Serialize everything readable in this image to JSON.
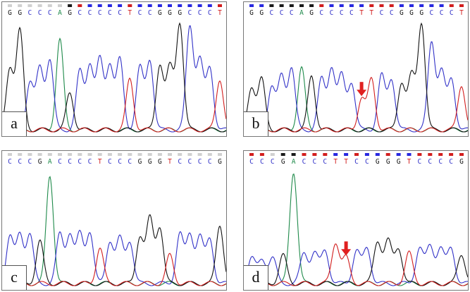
{
  "colors": {
    "A": "#1e8a4a",
    "C": "#3232c8",
    "G": "#111111",
    "T": "#d21e1e",
    "arrow": "#e02020",
    "border": "#777777"
  },
  "panels": [
    {
      "id": "a",
      "label": "a",
      "bases": "GGCCCAGCCCCCTCCGGGCCCT",
      "quality": [
        0,
        0,
        0,
        0,
        0,
        0,
        1,
        2,
        3,
        3,
        3,
        3,
        2,
        3,
        3,
        3,
        3,
        3,
        3,
        3,
        3,
        2
      ],
      "peaks": [
        0.55,
        0.88,
        0.42,
        0.55,
        0.62,
        0.8,
        0.33,
        0.52,
        0.58,
        0.62,
        0.58,
        0.62,
        0.45,
        0.55,
        0.62,
        0.58,
        0.55,
        0.95,
        0.92,
        0.62,
        0.55,
        0.45
      ],
      "arrow": null
    },
    {
      "id": "b",
      "label": "b",
      "bases": "GGCCCAGCCCCTTCCGGGCCCT",
      "quality": [
        3,
        3,
        1,
        1,
        1,
        1,
        1,
        2,
        3,
        3,
        3,
        3,
        2,
        2,
        2,
        3,
        3,
        3,
        3,
        3,
        2,
        2
      ],
      "peaks": [
        0.38,
        0.45,
        0.38,
        0.48,
        0.55,
        0.55,
        0.48,
        0.45,
        0.55,
        0.48,
        0.42,
        0.28,
        0.45,
        0.48,
        0.45,
        0.42,
        0.48,
        0.95,
        0.78,
        0.52,
        0.45,
        0.4
      ],
      "arrow": 11
    },
    {
      "id": "c",
      "label": "c",
      "bases": "CCCGACCCCTCCCGGGTCCCCG",
      "quality": [
        0,
        0,
        0,
        0,
        0,
        0,
        0,
        0,
        0,
        0,
        0,
        0,
        0,
        0,
        0,
        0,
        0,
        0,
        0,
        0,
        0,
        0
      ],
      "peaks": [
        0.4,
        0.42,
        0.42,
        0.36,
        0.92,
        0.42,
        0.42,
        0.42,
        0.44,
        0.3,
        0.36,
        0.38,
        0.36,
        0.4,
        0.55,
        0.48,
        0.24,
        0.42,
        0.42,
        0.4,
        0.38,
        0.5
      ],
      "arrow": null
    },
    {
      "id": "d",
      "label": "d",
      "bases": "CCCGACCCTTCCGGGTCCCCG",
      "quality": [
        2,
        2,
        0,
        1,
        1,
        2,
        2,
        2,
        3,
        3,
        2,
        3,
        3,
        2,
        3,
        3,
        2,
        2,
        2,
        2,
        2
      ],
      "peaks": [
        0.22,
        0.2,
        0.22,
        0.24,
        0.95,
        0.26,
        0.26,
        0.28,
        0.35,
        0.22,
        0.28,
        0.3,
        0.36,
        0.36,
        0.3,
        0.26,
        0.3,
        0.32,
        0.3,
        0.3,
        0.25
      ],
      "arrow": 9
    }
  ]
}
